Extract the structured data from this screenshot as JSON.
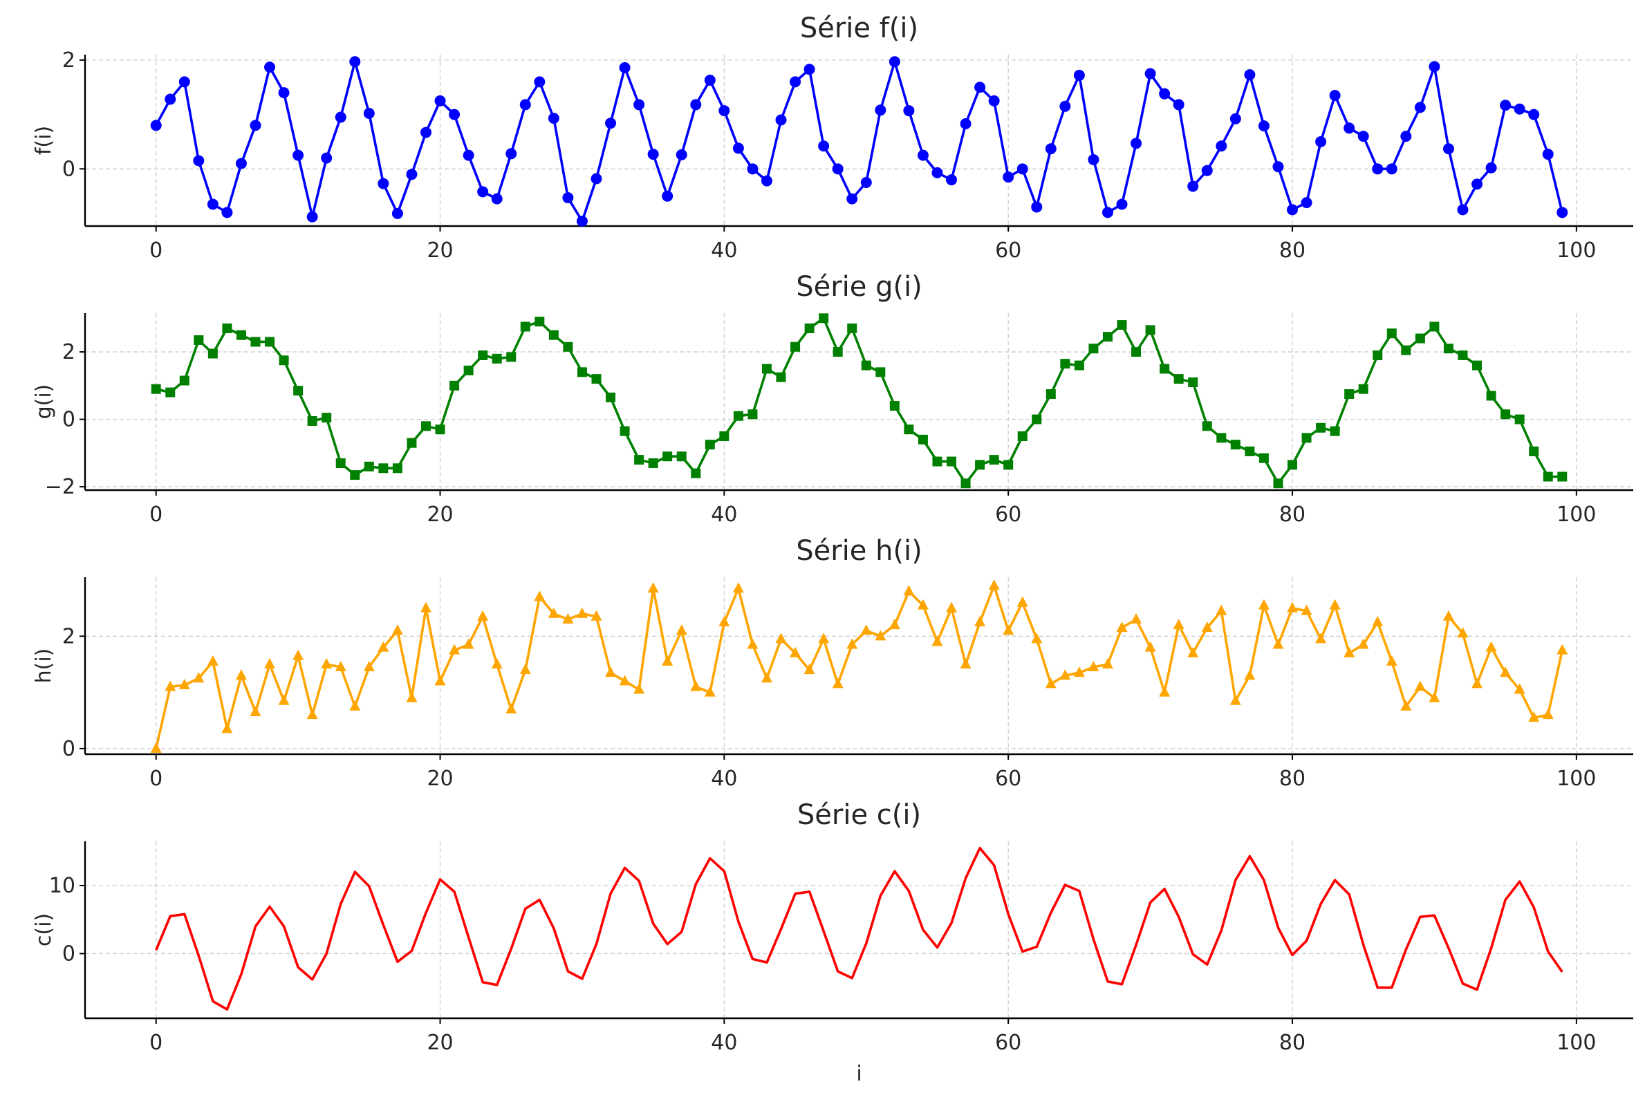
{
  "chart_data": [
    {
      "type": "line",
      "title": "Série f(i)",
      "xlabel": "",
      "ylabel": "f(i)",
      "xlim": [
        -5,
        104
      ],
      "ylim": [
        -1.05,
        2.1
      ],
      "xticks": [
        0,
        20,
        40,
        60,
        80,
        100
      ],
      "yticks": [
        0,
        2
      ],
      "ytick_labels": [
        "0",
        "2"
      ],
      "grid": true,
      "legend": "none",
      "series": [
        {
          "color": "#0000ff",
          "marker": "circle",
          "x": [
            0,
            1,
            2,
            3,
            4,
            5,
            6,
            7,
            8,
            9,
            10,
            11,
            12,
            13,
            14,
            15,
            16,
            17,
            18,
            19,
            20,
            21,
            22,
            23,
            24,
            25,
            26,
            27,
            28,
            29,
            30,
            31,
            32,
            33,
            34,
            35,
            36,
            37,
            38,
            39,
            40,
            41,
            42,
            43,
            44,
            45,
            46,
            47,
            48,
            49,
            50,
            51,
            52,
            53,
            54,
            55,
            56,
            57,
            58,
            59,
            60,
            61,
            62,
            63,
            64,
            65,
            66,
            67,
            68,
            69,
            70,
            71,
            72,
            73,
            74,
            75,
            76,
            77,
            78,
            79,
            80,
            81,
            82,
            83,
            84,
            85,
            86,
            87,
            88,
            89,
            90,
            91,
            92,
            93,
            94,
            95,
            96,
            97,
            98,
            99
          ],
          "values": [
            0.8,
            1.28,
            1.6,
            0.15,
            -0.65,
            -0.8,
            0.1,
            0.8,
            1.87,
            1.4,
            0.25,
            -0.88,
            0.2,
            0.95,
            1.97,
            1.02,
            -0.27,
            -0.82,
            -0.1,
            0.67,
            1.25,
            1.0,
            0.25,
            -0.42,
            -0.55,
            0.28,
            1.18,
            1.6,
            0.93,
            -0.53,
            -0.96,
            -0.18,
            0.84,
            1.86,
            1.18,
            0.27,
            -0.5,
            0.26,
            1.18,
            1.63,
            1.07,
            0.38,
            0.0,
            -0.22,
            0.9,
            1.6,
            1.83,
            0.42,
            0.0,
            -0.55,
            -0.25,
            1.08,
            1.97,
            1.07,
            0.25,
            -0.07,
            -0.2,
            0.83,
            1.5,
            1.25,
            -0.15,
            0.0,
            -0.7,
            0.37,
            1.15,
            1.72,
            0.17,
            -0.8,
            -0.65,
            0.47,
            1.75,
            1.38,
            1.18,
            -0.32,
            -0.03,
            0.42,
            0.92,
            1.73,
            0.79,
            0.04,
            -0.75,
            -0.62,
            0.5,
            1.35,
            0.75,
            0.6,
            0.0,
            0.0,
            0.6,
            1.13,
            1.88,
            0.37,
            -0.75,
            -0.28,
            0.02,
            1.17,
            1.1,
            1.0,
            0.27,
            -0.8
          ]
        }
      ]
    },
    {
      "type": "line",
      "title": "Série g(i)",
      "xlabel": "",
      "ylabel": "g(i)",
      "xlim": [
        -5,
        104
      ],
      "ylim": [
        -2.1,
        3.15
      ],
      "xticks": [
        0,
        20,
        40,
        60,
        80,
        100
      ],
      "yticks": [
        -2,
        0,
        2
      ],
      "ytick_labels": [
        "−2",
        "0",
        "2"
      ],
      "grid": true,
      "legend": "none",
      "series": [
        {
          "color": "#008000",
          "marker": "square",
          "x": [
            0,
            1,
            2,
            3,
            4,
            5,
            6,
            7,
            8,
            9,
            10,
            11,
            12,
            13,
            14,
            15,
            16,
            17,
            18,
            19,
            20,
            21,
            22,
            23,
            24,
            25,
            26,
            27,
            28,
            29,
            30,
            31,
            32,
            33,
            34,
            35,
            36,
            37,
            38,
            39,
            40,
            41,
            42,
            43,
            44,
            45,
            46,
            47,
            48,
            49,
            50,
            51,
            52,
            53,
            54,
            55,
            56,
            57,
            58,
            59,
            60,
            61,
            62,
            63,
            64,
            65,
            66,
            67,
            68,
            69,
            70,
            71,
            72,
            73,
            74,
            75,
            76,
            77,
            78,
            79,
            80,
            81,
            82,
            83,
            84,
            85,
            86,
            87,
            88,
            89,
            90,
            91,
            92,
            93,
            94,
            95,
            96,
            97,
            98,
            99
          ],
          "values": [
            0.9,
            0.8,
            1.15,
            2.35,
            1.95,
            2.7,
            2.5,
            2.3,
            2.3,
            1.75,
            0.85,
            -0.05,
            0.05,
            -1.3,
            -1.65,
            -1.4,
            -1.45,
            -1.45,
            -0.7,
            -0.2,
            -0.3,
            1.0,
            1.45,
            1.9,
            1.8,
            1.85,
            2.75,
            2.9,
            2.5,
            2.15,
            1.4,
            1.2,
            0.65,
            -0.35,
            -1.2,
            -1.3,
            -1.1,
            -1.1,
            -1.6,
            -0.75,
            -0.5,
            0.1,
            0.15,
            1.5,
            1.25,
            2.15,
            2.7,
            3.0,
            2.0,
            2.7,
            1.6,
            1.4,
            0.4,
            -0.3,
            -0.6,
            -1.25,
            -1.25,
            -1.9,
            -1.35,
            -1.2,
            -1.35,
            -0.5,
            0.0,
            0.75,
            1.65,
            1.6,
            2.1,
            2.45,
            2.8,
            2.0,
            2.65,
            1.5,
            1.2,
            1.1,
            -0.2,
            -0.55,
            -0.75,
            -0.95,
            -1.15,
            -1.9,
            -1.35,
            -0.55,
            -0.25,
            -0.35,
            0.75,
            0.9,
            1.9,
            2.55,
            2.05,
            2.4,
            2.75,
            2.1,
            1.9,
            1.6,
            0.7,
            0.15,
            0.0,
            -0.95,
            -1.7,
            -1.7
          ]
        }
      ]
    },
    {
      "type": "line",
      "title": "Série h(i)",
      "xlabel": "",
      "ylabel": "h(i)",
      "xlim": [
        -5,
        104
      ],
      "ylim": [
        -0.1,
        3.05
      ],
      "xticks": [
        0,
        20,
        40,
        60,
        80,
        100
      ],
      "yticks": [
        0,
        2
      ],
      "ytick_labels": [
        "0",
        "2"
      ],
      "grid": true,
      "legend": "none",
      "series": [
        {
          "color": "#ffa500",
          "marker": "triangle",
          "x": [
            0,
            1,
            2,
            3,
            4,
            5,
            6,
            7,
            8,
            9,
            10,
            11,
            12,
            13,
            14,
            15,
            16,
            17,
            18,
            19,
            20,
            21,
            22,
            23,
            24,
            25,
            26,
            27,
            28,
            29,
            30,
            31,
            32,
            33,
            34,
            35,
            36,
            37,
            38,
            39,
            40,
            41,
            42,
            43,
            44,
            45,
            46,
            47,
            48,
            49,
            50,
            51,
            52,
            53,
            54,
            55,
            56,
            57,
            58,
            59,
            60,
            61,
            62,
            63,
            64,
            65,
            66,
            67,
            68,
            69,
            70,
            71,
            72,
            73,
            74,
            75,
            76,
            77,
            78,
            79,
            80,
            81,
            82,
            83,
            84,
            85,
            86,
            87,
            88,
            89,
            90,
            91,
            92,
            93,
            94,
            95,
            96,
            97,
            98,
            99
          ],
          "values": [
            0.0,
            1.1,
            1.13,
            1.25,
            1.55,
            0.35,
            1.3,
            0.65,
            1.5,
            0.85,
            1.65,
            0.6,
            1.5,
            1.45,
            0.75,
            1.45,
            1.8,
            2.1,
            0.9,
            2.5,
            1.2,
            1.75,
            1.85,
            2.35,
            1.5,
            0.7,
            1.4,
            2.7,
            2.4,
            2.3,
            2.4,
            2.35,
            1.35,
            1.2,
            1.05,
            2.85,
            1.55,
            2.1,
            1.1,
            1.0,
            2.25,
            2.85,
            1.85,
            1.25,
            1.95,
            1.7,
            1.4,
            1.95,
            1.15,
            1.85,
            2.1,
            2.0,
            2.2,
            2.8,
            2.55,
            1.9,
            2.5,
            1.5,
            2.25,
            2.9,
            2.1,
            2.6,
            1.95,
            1.15,
            1.3,
            1.35,
            1.45,
            1.5,
            2.15,
            2.3,
            1.8,
            1.0,
            2.2,
            1.7,
            2.15,
            2.45,
            0.85,
            1.3,
            2.55,
            1.85,
            2.5,
            2.45,
            1.95,
            2.55,
            1.7,
            1.85,
            2.25,
            1.55,
            0.75,
            1.1,
            0.9,
            2.35,
            2.05,
            1.15,
            1.8,
            1.35,
            1.05,
            0.55,
            0.6,
            1.75
          ]
        }
      ]
    },
    {
      "type": "line",
      "title": "Série c(i)",
      "xlabel": "i",
      "ylabel": "c(i)",
      "xlim": [
        -5,
        104
      ],
      "ylim": [
        -9.5,
        16.5
      ],
      "xticks": [
        0,
        20,
        40,
        60,
        80,
        100
      ],
      "yticks": [
        0,
        10
      ],
      "ytick_labels": [
        "0",
        "10"
      ],
      "grid": true,
      "legend": "none",
      "series": [
        {
          "color": "#ff0000",
          "marker": "none",
          "x": [
            0,
            1,
            2,
            3,
            4,
            5,
            6,
            7,
            8,
            9,
            10,
            11,
            12,
            13,
            14,
            15,
            16,
            17,
            18,
            19,
            20,
            21,
            22,
            23,
            24,
            25,
            26,
            27,
            28,
            29,
            30,
            31,
            32,
            33,
            34,
            35,
            36,
            37,
            38,
            39,
            40,
            41,
            42,
            43,
            44,
            45,
            46,
            47,
            48,
            49,
            50,
            51,
            52,
            53,
            54,
            55,
            56,
            57,
            58,
            59,
            60,
            61,
            62,
            63,
            64,
            65,
            66,
            67,
            68,
            69,
            70,
            71,
            72,
            73,
            74,
            75,
            76,
            77,
            78,
            79,
            80,
            81,
            82,
            83,
            84,
            85,
            86,
            87,
            88,
            89,
            90,
            91,
            92,
            93,
            94,
            95,
            96,
            97,
            98,
            99
          ],
          "values": [
            0.5,
            5.5,
            5.8,
            -0.3,
            -7.0,
            -8.2,
            -3.0,
            4.0,
            6.9,
            4.0,
            -2.0,
            -3.8,
            0.0,
            7.3,
            12.0,
            9.9,
            4.2,
            -1.2,
            0.4,
            6.0,
            10.9,
            9.1,
            2.4,
            -4.2,
            -4.6,
            0.7,
            6.6,
            7.9,
            3.7,
            -2.6,
            -3.7,
            1.4,
            8.8,
            12.6,
            10.7,
            4.4,
            1.4,
            3.2,
            10.2,
            14.0,
            12.1,
            4.7,
            -0.8,
            -1.3,
            3.6,
            8.8,
            9.1,
            3.3,
            -2.6,
            -3.6,
            1.5,
            8.5,
            12.1,
            9.2,
            3.5,
            0.9,
            4.5,
            11.1,
            15.5,
            13.0,
            5.8,
            0.3,
            1.0,
            6.0,
            10.1,
            9.2,
            2.1,
            -4.1,
            -4.5,
            1.3,
            7.5,
            9.5,
            5.4,
            -0.1,
            -1.6,
            3.4,
            10.8,
            14.3,
            10.8,
            3.8,
            -0.2,
            1.9,
            7.3,
            10.8,
            8.7,
            1.3,
            -5.0,
            -5.0,
            0.6,
            5.4,
            5.6,
            0.8,
            -4.4,
            -5.3,
            0.8,
            7.9,
            10.6,
            6.8,
            0.3,
            -2.7
          ]
        }
      ]
    }
  ]
}
